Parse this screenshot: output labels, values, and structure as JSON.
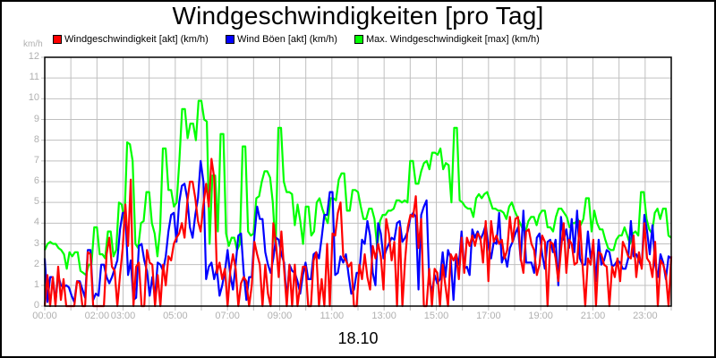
{
  "chart_data": {
    "type": "line",
    "title": "Windgeschwindigkeiten [pro Tag]",
    "xlabel": "18.10",
    "ylabel": "km/h",
    "ylim": [
      0,
      12
    ],
    "xlim": [
      "00:00",
      "24:00"
    ],
    "grid": true,
    "legend_position": "top",
    "y_ticks": [
      "0",
      "1",
      "2",
      "3",
      "4",
      "5",
      "6",
      "7",
      "8",
      "9",
      "10",
      "11",
      "12"
    ],
    "x_ticks": [
      {
        "label": "00:00",
        "hour": 0
      },
      {
        "label": "02:00",
        "hour": 2
      },
      {
        "label": "03:00",
        "hour": 3
      },
      {
        "label": "05:00",
        "hour": 5
      },
      {
        "label": "07:00",
        "hour": 7
      },
      {
        "label": "09:00",
        "hour": 9
      },
      {
        "label": "11:00",
        "hour": 11
      },
      {
        "label": "13:00",
        "hour": 13
      },
      {
        "label": "15:00",
        "hour": 15
      },
      {
        "label": "17:00",
        "hour": 17
      },
      {
        "label": "19:00",
        "hour": 19
      },
      {
        "label": "21:00",
        "hour": 21
      },
      {
        "label": "23:00",
        "hour": 23
      }
    ],
    "x_interval_minutes": 10,
    "series": [
      {
        "name": "Max. Windgeschwindigkeit [max] (km/h)",
        "color": "#00ff00",
        "values": [
          2.7,
          3.0,
          3.1,
          3.0,
          3.0,
          2.8,
          2.7,
          2.5,
          1.8,
          2.6,
          2.4,
          2.6,
          2.6,
          1.7,
          1.6,
          1.5,
          2.0,
          2.0,
          3.8,
          3.8,
          2.5,
          2.5,
          2.3,
          3.6,
          3.6,
          2.4,
          2.7,
          5.0,
          4.9,
          4.1,
          7.9,
          7.8,
          7.0,
          3.0,
          2.8,
          4.0,
          4.1,
          5.5,
          5.5,
          4.0,
          3.5,
          2.4,
          3.7,
          7.6,
          7.6,
          5.6,
          5.6,
          4.8,
          5.0,
          7.0,
          9.5,
          9.5,
          8.1,
          8.8,
          8.8,
          8.0,
          9.9,
          9.9,
          9.0,
          8.9,
          3.0,
          6.3,
          6.3,
          3.6,
          8.3,
          8.3,
          3.5,
          2.9,
          3.3,
          3.3,
          2.7,
          3.0,
          7.7,
          7.7,
          3.6,
          3.4,
          3.5,
          5.2,
          5.3,
          6.0,
          6.5,
          6.5,
          6.2,
          5.0,
          2.7,
          8.6,
          8.6,
          6.0,
          5.5,
          5.5,
          5.4,
          3.9,
          4.9,
          4.1,
          3.0,
          4.8,
          4.8,
          3.4,
          3.6,
          5.0,
          5.2,
          4.7,
          4.3,
          4.0,
          5.2,
          5.2,
          5.1,
          6.1,
          6.4,
          6.4,
          4.6,
          4.6,
          5.6,
          5.6,
          5.5,
          4.8,
          4.2,
          4.2,
          4.7,
          4.7,
          4.2,
          2.8,
          4.1,
          4.4,
          4.4,
          4.6,
          4.6,
          4.7,
          5.1,
          5.1,
          5.0,
          5.1,
          5.0,
          7.0,
          7.0,
          5.9,
          5.9,
          6.5,
          6.9,
          7.0,
          6.6,
          7.4,
          7.4,
          7.3,
          7.6,
          6.6,
          6.9,
          6.8,
          5.0,
          8.6,
          8.6,
          5.1,
          5.0,
          4.8,
          4.7,
          4.7,
          4.3,
          5.2,
          5.4,
          5.2,
          5.4,
          5.5,
          5.1,
          4.7,
          4.7,
          4.6,
          4.6,
          4.5,
          4.2,
          4.8,
          5.0,
          4.6,
          4.3,
          4.0,
          3.7,
          3.6,
          4.1,
          4.3,
          4.3,
          3.9,
          4.4,
          4.6,
          4.6,
          3.8,
          3.8,
          3.6,
          4.3,
          4.7,
          4.7,
          4.5,
          4.3,
          3.8,
          4.0,
          4.0,
          4.2,
          3.9,
          4.2,
          5.2,
          5.2,
          3.6,
          4.6,
          4.0,
          3.7,
          3.7,
          3.2,
          2.8,
          2.7,
          2.7,
          3.2,
          3.4,
          3.4,
          3.8,
          3.4,
          3.0,
          3.5,
          3.6,
          3.4,
          5.5,
          5.5,
          4.2,
          3.7,
          3.5,
          4.5,
          4.7,
          4.2,
          4.7,
          4.7,
          3.4,
          3.3
        ]
      },
      {
        "name": "Wind Böen [akt] (km/h)",
        "color": "#0000ff",
        "values": [
          2.3,
          0.2,
          1.4,
          1.4,
          0.2,
          1.5,
          1.0,
          0.9,
          1.0,
          0.9,
          0.5,
          0.2,
          1.2,
          1.2,
          0.8,
          0.4,
          2.7,
          2.7,
          0.3,
          0.6,
          0.5,
          2.0,
          2.0,
          1.4,
          1.1,
          1.4,
          1.8,
          2.2,
          3.7,
          4.5,
          4.5,
          1.5,
          2.2,
          0.3,
          0.4,
          2.9,
          3.0,
          2.2,
          1.7,
          0.5,
          1.4,
          0.4,
          2.1,
          2.0,
          1.7,
          2.4,
          3.6,
          4.4,
          4.5,
          3.1,
          5.0,
          5.8,
          5.9,
          5.2,
          3.8,
          3.3,
          4.4,
          5.2,
          7.0,
          6.0,
          1.3,
          1.9,
          2.1,
          1.3,
          1.8,
          0.5,
          1.0,
          1.7,
          2.7,
          1.5,
          0.8,
          2.0,
          3.4,
          3.5,
          1.6,
          0.3,
          1.4,
          1.4,
          3.4,
          4.8,
          4.2,
          4.2,
          2.6,
          2.0,
          1.6,
          2.3,
          3.3,
          3.2,
          2.5,
          2.1,
          0.3,
          2.0,
          1.7,
          1.6,
          1.2,
          0.6,
          1.5,
          2.1,
          1.3,
          1.3,
          2.5,
          2.6,
          2.3,
          3.3,
          4.4,
          4.4,
          5.5,
          5.5,
          1.5,
          1.6,
          2.4,
          2.1,
          2.5,
          1.5,
          0.6,
          0.8,
          1.6,
          1.6,
          3.2,
          3.0,
          4.1,
          3.4,
          1.6,
          1.0,
          4.0,
          3.5,
          2.3,
          2.7,
          3.0,
          3.3,
          3.2,
          4.0,
          4.1,
          3.1,
          3.3,
          3.6,
          4.3,
          4.5,
          4.3,
          0.8,
          4.4,
          4.8,
          5.1,
          1.2,
          0.7,
          1.5,
          1.1,
          1.3,
          2.6,
          1.4,
          2.7,
          2.3,
          0.3,
          2.5,
          2.0,
          3.6,
          1.8,
          1.9,
          1.5,
          3.7,
          3.3,
          3.6,
          3.2,
          3.5,
          3.9,
          2.9,
          2.3,
          3.1,
          3.0,
          4.5,
          2.1,
          2.5,
          1.9,
          2.8,
          3.1,
          3.5,
          3.8,
          2.2,
          4.6,
          2.1,
          2.1,
          2.1,
          1.6,
          3.3,
          3.5,
          2.5,
          1.8,
          3.1,
          3.2,
          2.6,
          3.2,
          1.0,
          4.3,
          3.2,
          3.7,
          2.8,
          4.2,
          2.6,
          4.6,
          2.3,
          2.0,
          2.0,
          3.6,
          2.3,
          3.0,
          1.2,
          3.2,
          2.0,
          2.2,
          2.7,
          2.6,
          1.9,
          2.0,
          2.2,
          2.1,
          1.8,
          1.8,
          2.3,
          4.1,
          2.4,
          2.5,
          2.2,
          1.9,
          4.4,
          3.6,
          2.5,
          3.9,
          2.0,
          1.4,
          2.5,
          2.1,
          1.3,
          2.4,
          2.3
        ]
      },
      {
        "name": "Windgeschwindigkeit [akt] (km/h)",
        "color": "#ff0000",
        "values": [
          0.0,
          1.5,
          0.0,
          1.4,
          0.0,
          1.9,
          0.3,
          1.3,
          0.0,
          0.0,
          0.0,
          0.0,
          1.2,
          1.1,
          0.0,
          0.0,
          2.6,
          2.5,
          0.0,
          0.0,
          0.0,
          0.0,
          0.0,
          2.5,
          3.3,
          1.9,
          1.7,
          0.0,
          1.5,
          2.8,
          4.9,
          2.9,
          6.1,
          0.0,
          1.9,
          2.1,
          0.0,
          0.0,
          2.7,
          2.1,
          2.0,
          0.0,
          1.5,
          0.0,
          2.0,
          1.0,
          2.4,
          2.2,
          3.0,
          3.3,
          3.5,
          4.0,
          3.3,
          5.0,
          6.0,
          6.0,
          5.2,
          4.1,
          3.6,
          4.9,
          5.9,
          4.8,
          7.1,
          6.2,
          1.6,
          2.1,
          1.3,
          1.8,
          0.0,
          1.7,
          2.5,
          1.8,
          0.0,
          1.1,
          1.4,
          1.2,
          0.0,
          1.0,
          3.1,
          2.5,
          2.0,
          0.0,
          2.0,
          0.6,
          0.0,
          4.0,
          3.0,
          1.4,
          3.6,
          1.8,
          0.0,
          2.0,
          0.0,
          2.0,
          0.0,
          1.0,
          1.9,
          1.9,
          0.0,
          0.0,
          2.2,
          2.6,
          0.0,
          1.3,
          0.0,
          3.0,
          0.0,
          3.5,
          3.4,
          4.5,
          5.0,
          2.4,
          2.2,
          1.9,
          2.1,
          0.0,
          0.0,
          2.0,
          1.3,
          2.5,
          1.4,
          0.8,
          2.9,
          2.3,
          3.0,
          2.4,
          0.8,
          4.2,
          3.5,
          2.2,
          3.1,
          0.0,
          3.8,
          0.0,
          2.2,
          3.8,
          4.4,
          4.3,
          5.3,
          2.8,
          4.2,
          0.0,
          0.0,
          1.8,
          0.0,
          1.8,
          1.6,
          0.0,
          2.0,
          1.0,
          0.0,
          2.5,
          2.2,
          2.5,
          1.3,
          3.3,
          1.6,
          3.3,
          2.9,
          3.4,
          2.9,
          3.5,
          3.3,
          2.1,
          4.1,
          1.2,
          4.1,
          3.1,
          3.4,
          3.0,
          3.2,
          2.3,
          2.7,
          4.3,
          3.1,
          4.2,
          4.3,
          2.3,
          1.6,
          3.6,
          3.7,
          3.0,
          2.7,
          1.5,
          2.0,
          3.4,
          3.1,
          0.0,
          3.1,
          3.0,
          2.3,
          1.2,
          2.7,
          4.0,
          1.6,
          3.2,
          3.0,
          2.0,
          2.1,
          4.1,
          2.0,
          0.0,
          2.3,
          2.0,
          3.2,
          0.0,
          2.6,
          2.5,
          2.0,
          1.9,
          0.0,
          1.9,
          1.4,
          2.3,
          1.2,
          3.1,
          2.8,
          2.4,
          2.3,
          3.4,
          1.4,
          2.6,
          1.8,
          4.0,
          2.3,
          2.1,
          1.4,
          3.1,
          0.0,
          2.2,
          2.0,
          1.5,
          0.0,
          2.4
        ]
      }
    ]
  },
  "header": {
    "title": "Windgeschwindigkeiten [pro Tag]",
    "unit_label": "km/h"
  },
  "legend": {
    "items": [
      {
        "label": "Windgeschwindigkeit [akt] (km/h)",
        "color": "#ff0000"
      },
      {
        "label": "Wind Böen [akt] (km/h)",
        "color": "#0000ff"
      },
      {
        "label": "Max. Windgeschwindigkeit [max] (km/h)",
        "color": "#00ff00"
      }
    ]
  },
  "footer": {
    "date_label": "18.10"
  },
  "colors": {
    "axis": "#000000",
    "grid": "#c0c0c0",
    "tick_label": "#b0b0b0",
    "background": "#ffffff"
  }
}
